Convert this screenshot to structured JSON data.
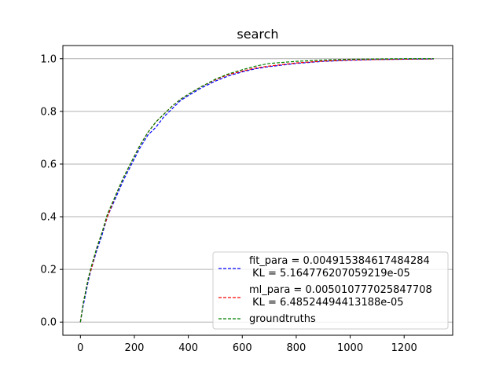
{
  "chart_data": {
    "type": "line",
    "title": "search",
    "xlabel": "",
    "ylabel": "",
    "xlim": [
      -65,
      1380
    ],
    "ylim": [
      -0.05,
      1.05
    ],
    "grid": "horizontal",
    "legend_position": "lower-right",
    "x_ticks": [
      0,
      200,
      400,
      600,
      800,
      1000,
      1200
    ],
    "x_tick_labels": [
      "0",
      "200",
      "400",
      "600",
      "800",
      "1000",
      "1200"
    ],
    "y_ticks": [
      0.0,
      0.2,
      0.4,
      0.6,
      0.8,
      1.0
    ],
    "y_tick_labels": [
      "0.0",
      "0.2",
      "0.4",
      "0.6",
      "0.8",
      "1.0"
    ],
    "series": [
      {
        "name_line1": "fit_para = 0.004915384617484284",
        "name_line2": " KL = 5.164776207059219e-05",
        "color": "#0000ff",
        "style": "dashed",
        "x": [
          0,
          10,
          20,
          30,
          40,
          60,
          80,
          100,
          130,
          160,
          190,
          220,
          250,
          280,
          310,
          340,
          370,
          400,
          450,
          500,
          550,
          600,
          650,
          700,
          800,
          900,
          1000,
          1100,
          1200,
          1310
        ],
        "y": [
          0.0,
          0.06,
          0.11,
          0.16,
          0.2,
          0.27,
          0.33,
          0.4,
          0.47,
          0.54,
          0.6,
          0.66,
          0.71,
          0.74,
          0.78,
          0.81,
          0.84,
          0.86,
          0.89,
          0.915,
          0.935,
          0.95,
          0.962,
          0.97,
          0.982,
          0.99,
          0.994,
          0.997,
          0.998,
          0.999
        ]
      },
      {
        "name_line1": "ml_para = 0.005010777025847708",
        "name_line2": " KL = 6.48524494413188e-05",
        "color": "#ff0000",
        "style": "dashed",
        "x": [
          0,
          10,
          20,
          30,
          40,
          60,
          80,
          100,
          130,
          160,
          190,
          220,
          250,
          280,
          310,
          340,
          370,
          400,
          450,
          500,
          550,
          600,
          650,
          700,
          800,
          900,
          1000,
          1100,
          1200,
          1310
        ],
        "y": [
          0.0,
          0.07,
          0.12,
          0.17,
          0.2,
          0.28,
          0.34,
          0.4,
          0.48,
          0.55,
          0.61,
          0.67,
          0.72,
          0.76,
          0.79,
          0.82,
          0.845,
          0.865,
          0.895,
          0.92,
          0.94,
          0.953,
          0.965,
          0.972,
          0.984,
          0.991,
          0.995,
          0.997,
          0.998,
          0.999
        ]
      },
      {
        "name_line1": "groundtruths",
        "name_line2": "",
        "color": "#008000",
        "style": "dashed",
        "x": [
          0,
          10,
          20,
          30,
          40,
          60,
          80,
          100,
          130,
          160,
          190,
          220,
          250,
          280,
          310,
          340,
          370,
          400,
          450,
          500,
          550,
          600,
          650,
          700,
          800,
          900,
          1000,
          1100,
          1200,
          1310
        ],
        "y": [
          0.0,
          0.07,
          0.12,
          0.17,
          0.21,
          0.28,
          0.34,
          0.41,
          0.48,
          0.55,
          0.61,
          0.67,
          0.72,
          0.76,
          0.79,
          0.82,
          0.845,
          0.865,
          0.895,
          0.922,
          0.943,
          0.958,
          0.972,
          0.982,
          0.99,
          0.995,
          0.998,
          0.999,
          1.0,
          1.0
        ]
      }
    ]
  },
  "colors": {
    "axis": "#000000",
    "grid": "#b0b0b0",
    "legend_border": "#cccccc",
    "background": "#ffffff"
  }
}
